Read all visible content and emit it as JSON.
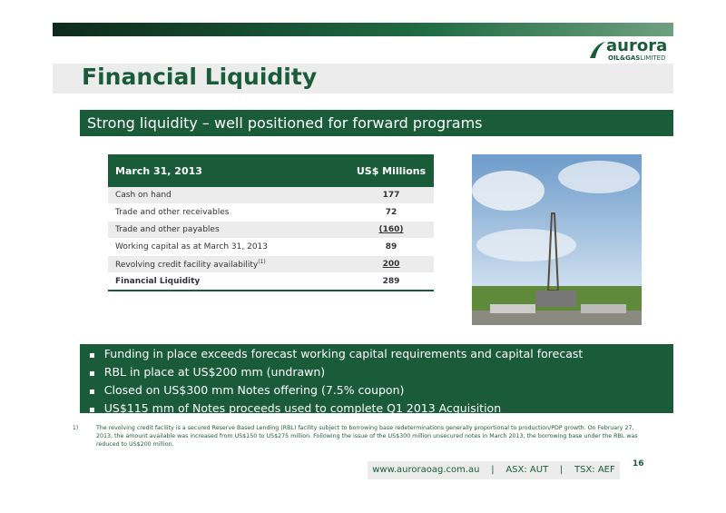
{
  "logo": {
    "name": "aurora",
    "sub": "OIL&GAS",
    "sub2": "LIMITED"
  },
  "header": {
    "title": "Financial Liquidity",
    "banner": "Strong liquidity – well positioned for forward programs"
  },
  "table": {
    "header": [
      "March 31, 2013",
      "US$ Millions"
    ],
    "rows": [
      [
        "Cash on hand",
        177
      ],
      [
        "Trade and other receivables",
        72
      ],
      [
        "Trade and other payables",
        "(160)"
      ],
      [
        "Working capital as at March 31, 2013",
        89
      ],
      [
        "Revolving credit facility availability",
        200
      ],
      [
        "Financial Liquidity",
        289
      ]
    ],
    "footnote_ref": "(1)"
  },
  "bullets": [
    "Funding in place exceeds forecast working capital requirements and capital forecast",
    "RBL in place at US$200 mm (undrawn)",
    "Closed on US$300 mm Notes offering (7.5% coupon)",
    "US$115 mm of Notes proceeds used to complete Q1 2013 Acquisition"
  ],
  "footnote": {
    "marker": "1)",
    "text": "The revolving credit facility is a secured Reserve Based Lending (RBL) facility subject to borrowing base redeterminations generally proportional to production/PDP growth. On February 27, 2013, the amount available was increased from US$150 to US$275 million.  Following the issue of the US$300 million unsecured notes in March 2013, the borrowing base under the RBL was reduced to US$200 million."
  },
  "page_number": "16",
  "footer": "www.auroraoag.com.au    |    ASX: AUT    |    TSX: AEF"
}
